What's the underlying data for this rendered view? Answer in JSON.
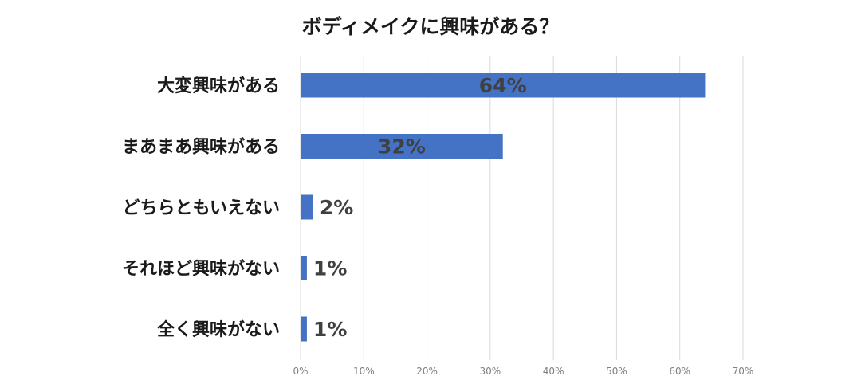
{
  "chart_data": {
    "type": "bar",
    "orientation": "horizontal",
    "title": "ボディメイクに興味がある？",
    "categories": [
      "大変興味がある",
      "まあまあ興味がある",
      "どちらともいえない",
      "それほど興味がない",
      "全く興味がない"
    ],
    "values": [
      64,
      32,
      2,
      1,
      1
    ],
    "data_labels": [
      "64%",
      "32%",
      "2%",
      "1%",
      "1%"
    ],
    "x_ticks": [
      "0%",
      "10%",
      "20%",
      "30%",
      "40%",
      "50%",
      "60%",
      "70%"
    ],
    "xlim": [
      0,
      70
    ],
    "grid": true,
    "bar_color": "#4472C4",
    "grid_color": "#D9D9D9",
    "label_color": "#404040"
  }
}
